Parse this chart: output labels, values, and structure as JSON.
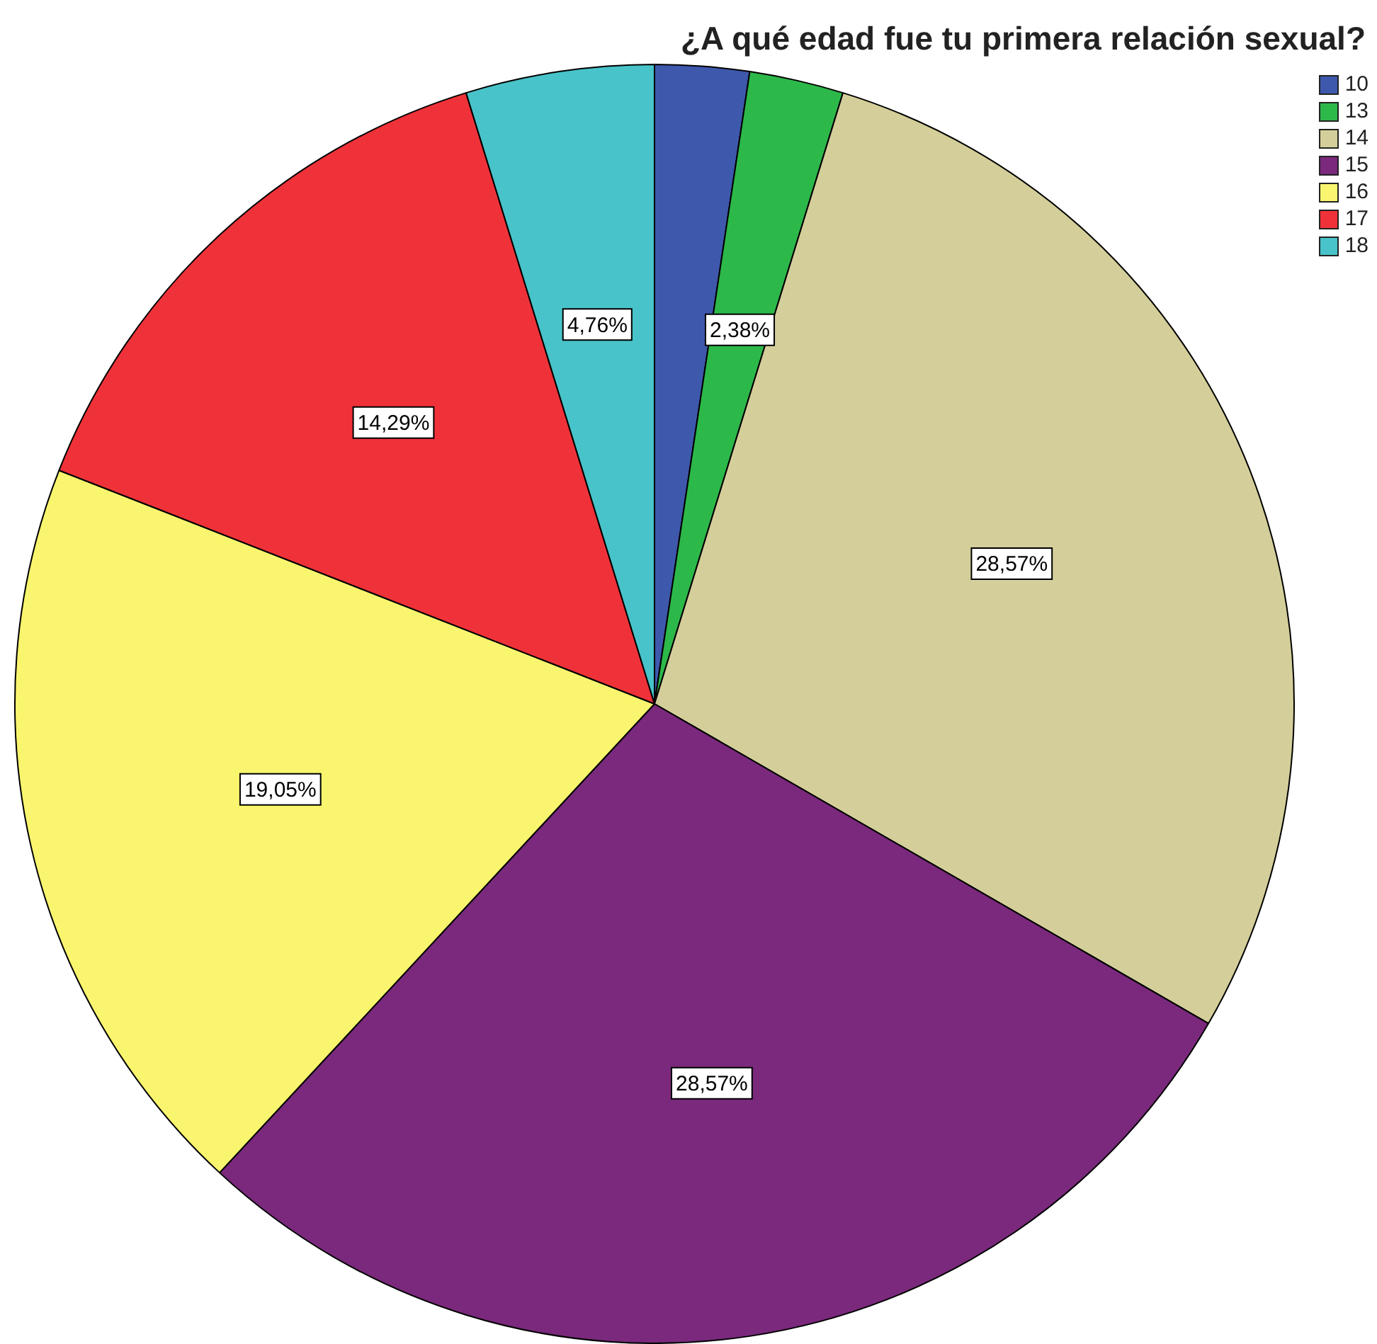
{
  "chart_data": {
    "type": "pie",
    "title": "¿A qué edad fue tu primera relación sexual?",
    "categories": [
      "10",
      "13",
      "14",
      "15",
      "16",
      "17",
      "18"
    ],
    "values": [
      2.38,
      2.38,
      28.57,
      28.57,
      19.05,
      14.29,
      4.76
    ],
    "value_labels": [
      null,
      "2,38%",
      "28,57%",
      "28,57%",
      "19,05%",
      "14,29%",
      "4,76%"
    ],
    "colors": [
      "#3e58ac",
      "#2db84a",
      "#d4cf9a",
      "#7a297c",
      "#f9f56e",
      "#ef3239",
      "#48c3c9"
    ],
    "legend": "top right"
  }
}
